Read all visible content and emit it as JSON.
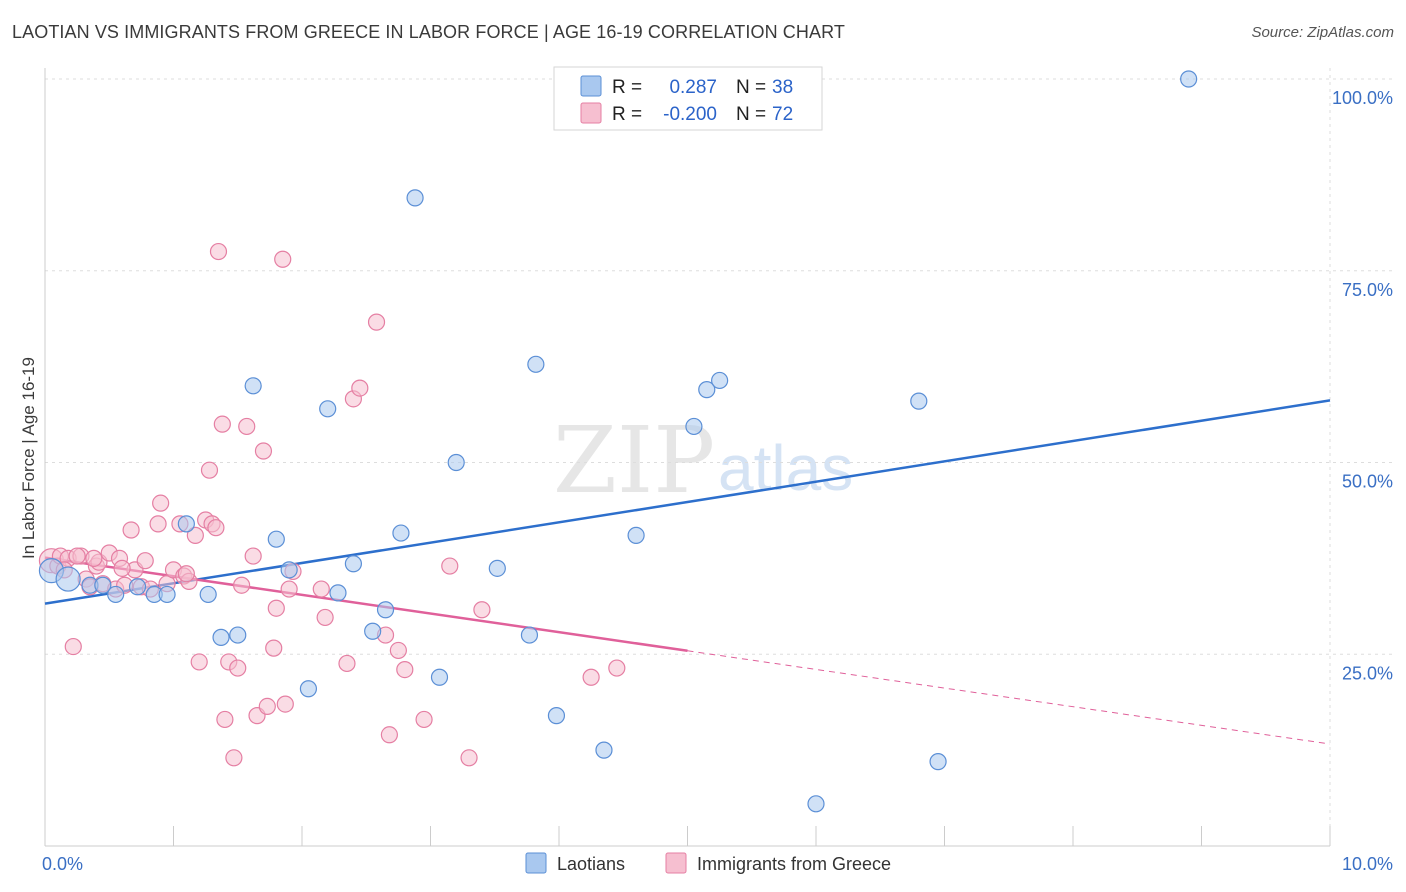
{
  "title": "LAOTIAN VS IMMIGRANTS FROM GREECE IN LABOR FORCE | AGE 16-19 CORRELATION CHART",
  "source": "Source: ZipAtlas.com",
  "watermark": {
    "zip": "ZIP",
    "atlas": "atlas"
  },
  "colors": {
    "blue_fill": "#a9c8ef",
    "blue_stroke": "#5b8fd6",
    "blue_line": "#2d6fcc",
    "pink_fill": "#f6bfd0",
    "pink_stroke": "#e57fa3",
    "pink_line": "#e0609a",
    "grid": "#dddddd",
    "axis_text": "#3a6fc4"
  },
  "legend": {
    "rows": [
      {
        "r_label": "R =",
        "r_value": "0.287",
        "n_label": "N =",
        "n_value": "38"
      },
      {
        "r_label": "R =",
        "r_value": "-0.200",
        "n_label": "N =",
        "n_value": "72"
      }
    ]
  },
  "bottom_legend": {
    "series1": "Laotians",
    "series2": "Immigrants from Greece"
  },
  "chart_data": {
    "type": "scatter",
    "title": "LAOTIAN VS IMMIGRANTS FROM GREECE IN LABOR FORCE | AGE 16-19 CORRELATION CHART",
    "xlabel": "",
    "ylabel": "In Labor Force | Age 16-19",
    "xlim": [
      0,
      10
    ],
    "ylim": [
      0,
      102
    ],
    "x_tick_labels": [
      "0.0%",
      "10.0%"
    ],
    "y_ticks": [
      25,
      50,
      75,
      100
    ],
    "y_tick_labels": [
      "25.0%",
      "50.0%",
      "75.0%",
      "100.0%"
    ],
    "series": [
      {
        "name": "Laotians",
        "r": 0.287,
        "n": 38,
        "trend": {
          "x": [
            0,
            10
          ],
          "y": [
            31.6,
            58.1
          ],
          "dashed_from": null
        },
        "points": [
          [
            0.05,
            35.9,
            "large"
          ],
          [
            0.18,
            34.8,
            "large"
          ],
          [
            0.35,
            34.0
          ],
          [
            0.45,
            34.0
          ],
          [
            0.55,
            32.8
          ],
          [
            0.72,
            33.8
          ],
          [
            0.85,
            32.8
          ],
          [
            0.95,
            32.8
          ],
          [
            1.1,
            42.0
          ],
          [
            1.27,
            32.8
          ],
          [
            1.37,
            27.2
          ],
          [
            1.5,
            27.5
          ],
          [
            1.62,
            60.0
          ],
          [
            1.8,
            40.0
          ],
          [
            1.9,
            36.0
          ],
          [
            2.05,
            20.5
          ],
          [
            2.2,
            57.0
          ],
          [
            2.28,
            33.0
          ],
          [
            2.4,
            36.8
          ],
          [
            2.55,
            28.0
          ],
          [
            2.65,
            30.8
          ],
          [
            2.77,
            40.8
          ],
          [
            2.88,
            84.5
          ],
          [
            3.07,
            22.0
          ],
          [
            3.2,
            50.0
          ],
          [
            3.52,
            36.2
          ],
          [
            3.77,
            27.5
          ],
          [
            3.82,
            62.8
          ],
          [
            3.98,
            17.0
          ],
          [
            4.35,
            12.5
          ],
          [
            4.6,
            40.5
          ],
          [
            5.05,
            54.7
          ],
          [
            5.15,
            59.5
          ],
          [
            5.25,
            60.7
          ],
          [
            6.0,
            5.5
          ],
          [
            6.8,
            58.0
          ],
          [
            6.95,
            11.0
          ],
          [
            8.9,
            100.0
          ]
        ]
      },
      {
        "name": "Immigrants from Greece",
        "r": -0.2,
        "n": 72,
        "trend": {
          "x": [
            0,
            10
          ],
          "y": [
            37.6,
            13.3
          ],
          "dashed_from": 5.0
        },
        "points": [
          [
            0.05,
            37.2,
            "large"
          ],
          [
            0.1,
            36.5
          ],
          [
            0.12,
            37.8
          ],
          [
            0.18,
            37.5
          ],
          [
            0.22,
            26.0
          ],
          [
            0.28,
            37.8
          ],
          [
            0.32,
            34.8
          ],
          [
            0.35,
            33.8
          ],
          [
            0.4,
            36.5
          ],
          [
            0.42,
            37.0
          ],
          [
            0.45,
            34.2
          ],
          [
            0.5,
            38.2
          ],
          [
            0.55,
            33.5
          ],
          [
            0.58,
            37.5
          ],
          [
            0.62,
            34.0
          ],
          [
            0.67,
            41.2
          ],
          [
            0.7,
            36.0
          ],
          [
            0.75,
            33.8
          ],
          [
            0.78,
            37.2
          ],
          [
            0.82,
            33.5
          ],
          [
            0.88,
            42.0
          ],
          [
            0.9,
            44.7
          ],
          [
            0.95,
            34.2
          ],
          [
            1.0,
            36.0
          ],
          [
            1.05,
            42.0
          ],
          [
            1.08,
            35.2
          ],
          [
            1.12,
            34.5
          ],
          [
            1.17,
            40.5
          ],
          [
            1.2,
            24.0
          ],
          [
            1.25,
            42.5
          ],
          [
            1.28,
            49.0
          ],
          [
            1.3,
            42.0
          ],
          [
            1.33,
            41.5
          ],
          [
            1.38,
            55.0
          ],
          [
            1.4,
            16.5
          ],
          [
            1.43,
            24.0
          ],
          [
            1.47,
            11.5
          ],
          [
            1.5,
            23.2
          ],
          [
            1.53,
            34.0
          ],
          [
            1.57,
            54.7
          ],
          [
            1.62,
            37.8
          ],
          [
            1.65,
            17.0
          ],
          [
            1.7,
            51.5
          ],
          [
            1.73,
            18.2
          ],
          [
            1.78,
            25.8
          ],
          [
            1.8,
            31.0
          ],
          [
            1.85,
            76.5
          ],
          [
            1.87,
            18.5
          ],
          [
            1.9,
            33.5
          ],
          [
            1.93,
            35.8
          ],
          [
            2.15,
            33.5
          ],
          [
            2.18,
            29.8
          ],
          [
            2.35,
            23.8
          ],
          [
            2.4,
            58.3
          ],
          [
            2.45,
            59.7
          ],
          [
            2.58,
            68.3
          ],
          [
            2.65,
            27.5
          ],
          [
            2.68,
            14.5
          ],
          [
            2.75,
            25.5
          ],
          [
            2.8,
            23.0
          ],
          [
            2.95,
            16.5
          ],
          [
            3.15,
            36.5
          ],
          [
            3.3,
            11.5
          ],
          [
            3.4,
            30.8
          ],
          [
            4.25,
            22.0
          ],
          [
            4.45,
            23.2
          ],
          [
            1.35,
            77.5
          ],
          [
            0.6,
            36.2
          ],
          [
            0.38,
            37.5
          ],
          [
            0.15,
            36.0
          ],
          [
            0.25,
            37.8
          ],
          [
            1.1,
            35.5
          ]
        ]
      }
    ]
  }
}
